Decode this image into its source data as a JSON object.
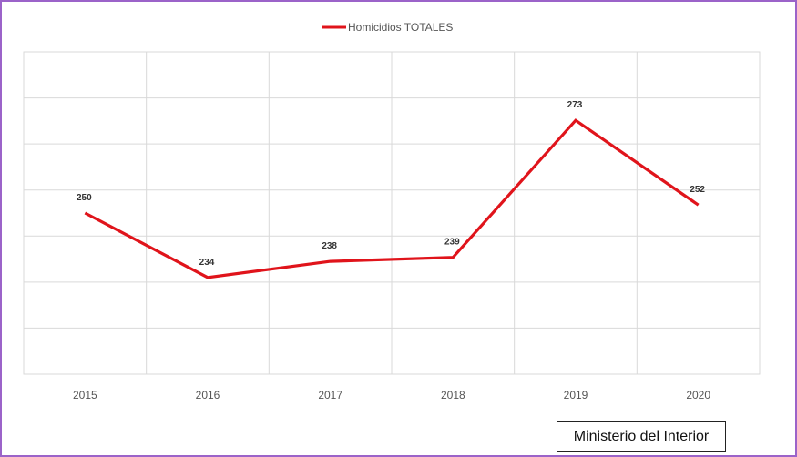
{
  "chart_data": {
    "type": "line",
    "title": "",
    "xlabel": "",
    "ylabel": "",
    "categories": [
      "2015",
      "2016",
      "2017",
      "2018",
      "2019",
      "2020"
    ],
    "series": [
      {
        "name": "Homicidios TOTALES",
        "values": [
          250,
          234,
          238,
          239,
          273,
          252
        ],
        "color": "#e0141b"
      }
    ],
    "ylim": [
      210,
      290
    ],
    "grid": true,
    "legend": "top"
  },
  "source_label": "Ministerio del Interior"
}
